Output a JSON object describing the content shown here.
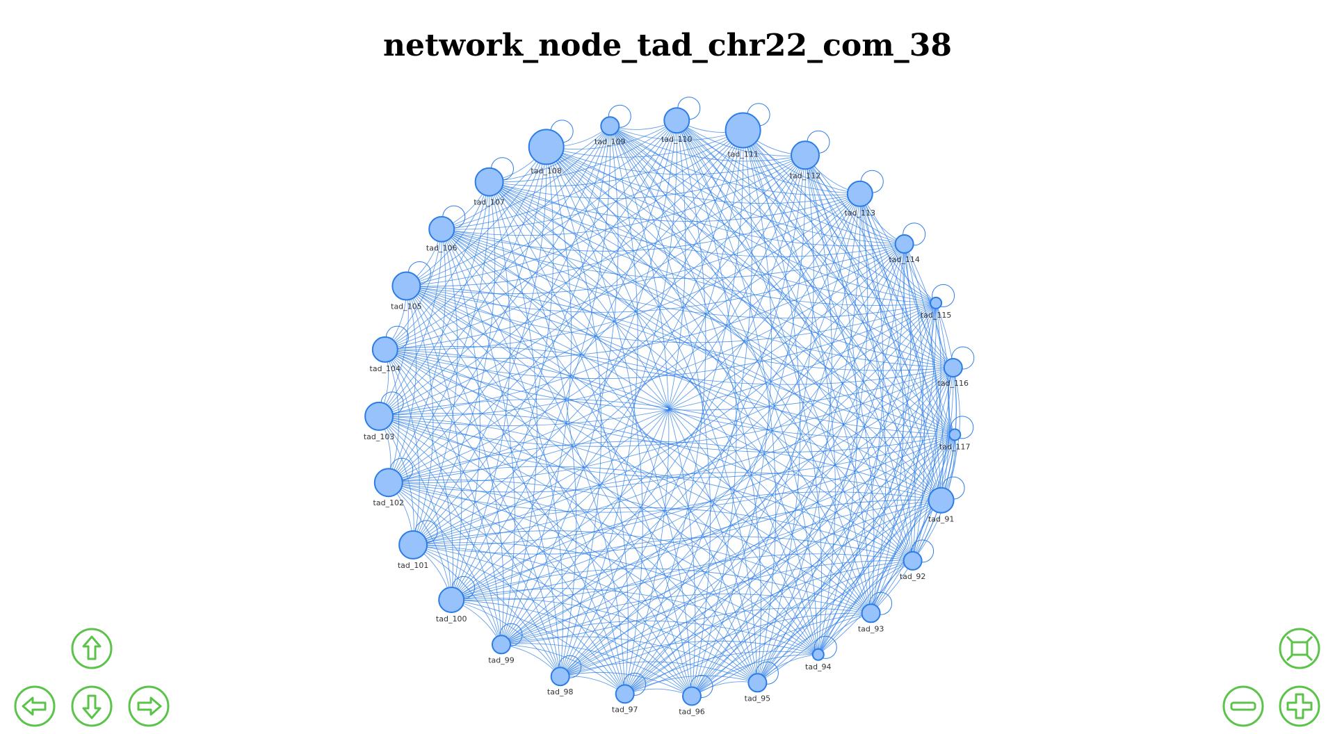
{
  "title": "network_node_tad_chr22_com_38",
  "colors": {
    "node_fill": "#97c2fc",
    "node_stroke": "#2b7ce9",
    "edge": "#2b7ce9",
    "button": "#5cc34a"
  },
  "nodes": [
    {
      "id": "tad_91",
      "size": "medium"
    },
    {
      "id": "tad_92",
      "size": "small"
    },
    {
      "id": "tad_93",
      "size": "small"
    },
    {
      "id": "tad_94",
      "size": "tiny"
    },
    {
      "id": "tad_95",
      "size": "small"
    },
    {
      "id": "tad_96",
      "size": "small"
    },
    {
      "id": "tad_97",
      "size": "small"
    },
    {
      "id": "tad_98",
      "size": "small"
    },
    {
      "id": "tad_99",
      "size": "small"
    },
    {
      "id": "tad_100",
      "size": "medium"
    },
    {
      "id": "tad_101",
      "size": "large"
    },
    {
      "id": "tad_102",
      "size": "large"
    },
    {
      "id": "tad_103",
      "size": "large"
    },
    {
      "id": "tad_104",
      "size": "medium"
    },
    {
      "id": "tad_105",
      "size": "large"
    },
    {
      "id": "tad_106",
      "size": "medium"
    },
    {
      "id": "tad_107",
      "size": "large"
    },
    {
      "id": "tad_108",
      "size": "xlarge"
    },
    {
      "id": "tad_109",
      "size": "small"
    },
    {
      "id": "tad_110",
      "size": "medium"
    },
    {
      "id": "tad_111",
      "size": "xlarge"
    },
    {
      "id": "tad_112",
      "size": "large"
    },
    {
      "id": "tad_113",
      "size": "medium"
    },
    {
      "id": "tad_114",
      "size": "small"
    },
    {
      "id": "tad_115",
      "size": "tiny"
    },
    {
      "id": "tad_116",
      "size": "small"
    },
    {
      "id": "tad_117",
      "size": "tiny"
    }
  ],
  "edges": "all-pairs",
  "self_loops": true,
  "nav": {
    "up": "up-arrow-icon",
    "down": "down-arrow-icon",
    "left": "left-arrow-icon",
    "right": "right-arrow-icon",
    "zoom_out": "minus-icon",
    "zoom_in": "plus-icon",
    "fit": "fit-screen-icon"
  }
}
